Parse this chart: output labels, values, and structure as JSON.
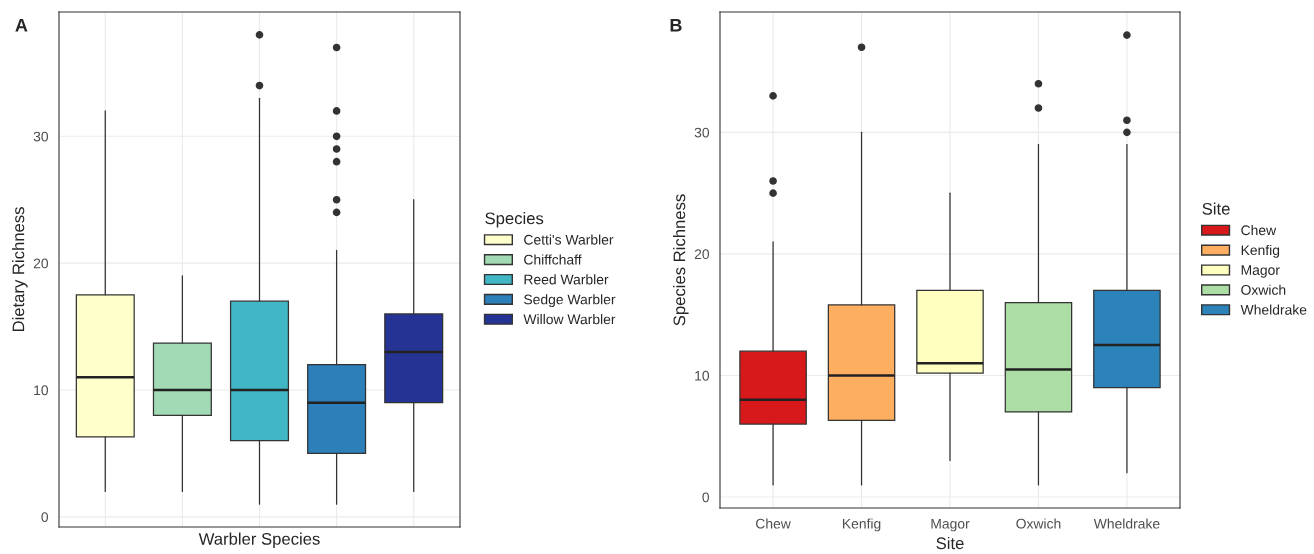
{
  "chart_data": [
    {
      "type": "box",
      "title": "A",
      "xlabel": "Warbler Species",
      "ylabel": "Dietary Richness",
      "legend_title": "Species",
      "legend": "right",
      "grid": true,
      "tick_labels": "y",
      "categories": [
        null,
        null,
        null,
        null,
        null
      ],
      "ylim": [
        -0.8,
        39.8
      ],
      "yticks": [
        0,
        10,
        20,
        30
      ],
      "series": [
        {
          "name": "Cetti's Warbler",
          "color": "#ffffcc",
          "boxes": [
            {
              "low": 2,
              "q1": 6.3,
              "median": 11,
              "q3": 17.5,
              "high": 32
            },
            null,
            null,
            null,
            null
          ]
        },
        {
          "name": "Chiffchaff",
          "color": "#a1dab4",
          "boxes": [
            null,
            {
              "low": 2,
              "q1": 8,
              "median": 10,
              "q3": 13.7,
              "high": 19
            },
            null,
            null,
            null
          ]
        },
        {
          "name": "Reed Warbler",
          "color": "#41b6c4",
          "boxes": [
            null,
            null,
            {
              "low": 1,
              "q1": 6,
              "median": 10,
              "q3": 17,
              "high": 33,
              "outliers": [
                34,
                38
              ]
            },
            null,
            null
          ]
        },
        {
          "name": "Sedge Warbler",
          "color": "#2c7fb8",
          "boxes": [
            null,
            null,
            null,
            {
              "low": 1,
              "q1": 5,
              "median": 9,
              "q3": 12,
              "high": 21,
              "outliers": [
                24,
                25,
                28,
                29,
                30,
                32,
                37
              ]
            },
            null
          ]
        },
        {
          "name": "Willow Warbler",
          "color": "#253494",
          "boxes": [
            null,
            null,
            null,
            null,
            {
              "low": 2,
              "q1": 9,
              "median": 13,
              "q3": 16,
              "high": 25
            }
          ]
        }
      ]
    },
    {
      "type": "box",
      "title": "B",
      "xlabel": "Site",
      "ylabel": "Species Richness",
      "legend_title": "Site",
      "legend": "right",
      "grid": true,
      "categories": [
        "Chew",
        "Kenfig",
        "Magor",
        "Oxwich",
        "Wheldrake"
      ],
      "ylim": [
        -0.9,
        39.9
      ],
      "yticks": [
        0,
        10,
        20,
        30
      ],
      "series": [
        {
          "name": "Chew",
          "color": "#d7191c",
          "boxes": [
            {
              "low": 1,
              "q1": 6,
              "median": 8,
              "q3": 12,
              "high": 21,
              "outliers": [
                25,
                26,
                33
              ]
            },
            null,
            null,
            null,
            null
          ]
        },
        {
          "name": "Kenfig",
          "color": "#fdae61",
          "boxes": [
            null,
            {
              "low": 1,
              "q1": 6.3,
              "median": 10,
              "q3": 15.8,
              "high": 30,
              "outliers": [
                37
              ]
            },
            null,
            null,
            null
          ]
        },
        {
          "name": "Magor",
          "color": "#ffffbf",
          "boxes": [
            null,
            null,
            {
              "low": 3,
              "q1": 10.2,
              "median": 11,
              "q3": 17,
              "high": 25
            },
            null,
            null
          ]
        },
        {
          "name": "Oxwich",
          "color": "#abdda4",
          "boxes": [
            null,
            null,
            null,
            {
              "low": 1,
              "q1": 7,
              "median": 10.5,
              "q3": 16,
              "high": 29,
              "outliers": [
                32,
                34
              ]
            },
            null
          ]
        },
        {
          "name": "Wheldrake",
          "color": "#2b83ba",
          "boxes": [
            null,
            null,
            null,
            null,
            {
              "low": 2,
              "q1": 9,
              "median": 12.5,
              "q3": 17,
              "high": 29,
              "outliers": [
                30,
                31,
                38
              ]
            }
          ]
        }
      ]
    }
  ]
}
